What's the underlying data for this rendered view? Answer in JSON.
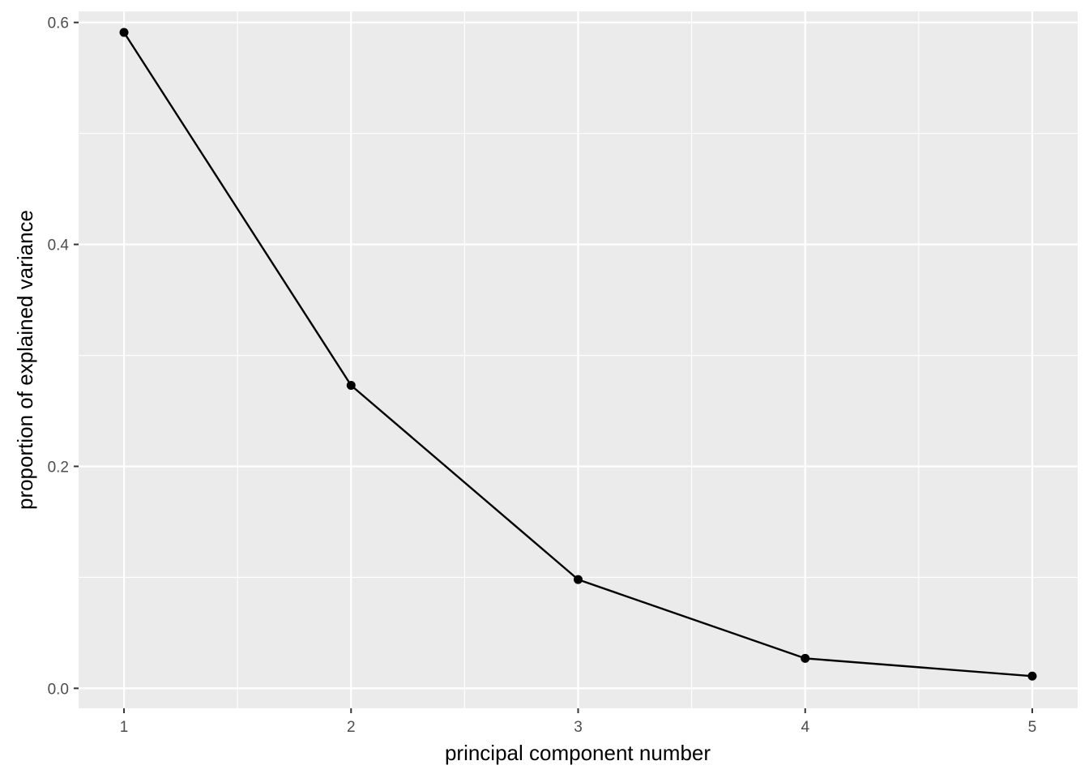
{
  "chart_data": {
    "type": "line",
    "xlabel": "principal component number",
    "ylabel": "proportion of explained variance",
    "x": [
      1,
      2,
      3,
      4,
      5
    ],
    "y": [
      0.591,
      0.273,
      0.098,
      0.027,
      0.011
    ],
    "xlim": [
      0.8,
      5.2
    ],
    "ylim": [
      -0.018,
      0.61
    ],
    "x_ticks": [
      1,
      2,
      3,
      4,
      5
    ],
    "x_tick_labels": [
      "1",
      "2",
      "3",
      "4",
      "5"
    ],
    "y_ticks": [
      0.0,
      0.2,
      0.4,
      0.6
    ],
    "y_tick_labels": [
      "0.0",
      "0.2",
      "0.4",
      "0.6"
    ],
    "grid": true,
    "legend": "none",
    "colors": {
      "panel_background": "#ebebeb",
      "grid": "#ffffff",
      "line": "#000000",
      "point": "#000000",
      "tick_text": "#4d4d4d",
      "tick_mark": "#333333"
    }
  }
}
